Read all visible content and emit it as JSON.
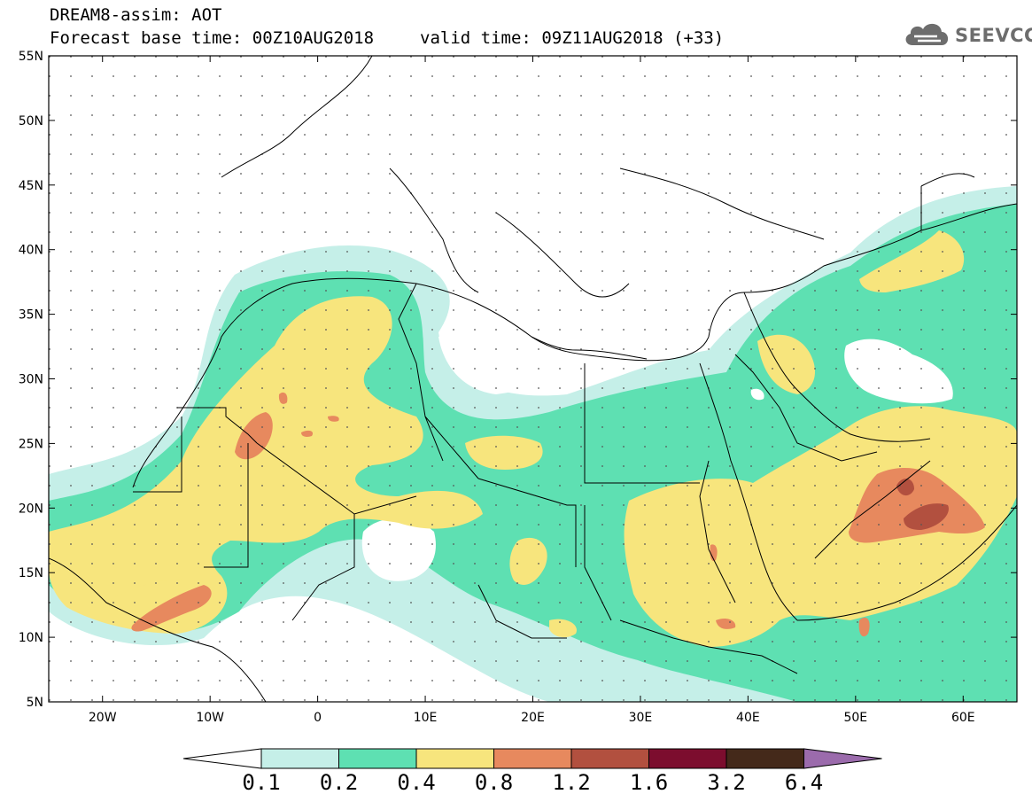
{
  "header": {
    "title": "DREAM8-assim: AOT",
    "base_time": "Forecast base time: 00Z10AUG2018",
    "valid_time": "valid time: 09Z11AUG2018 (+33)"
  },
  "logo": {
    "text": "SEEVCCC",
    "icon": "cloud-icon",
    "color": "#6d6d6d"
  },
  "map": {
    "lon_range": [
      -25,
      65
    ],
    "lat_range": [
      5,
      55
    ],
    "lat_labels": [
      "55N",
      "50N",
      "45N",
      "40N",
      "35N",
      "30N",
      "25N",
      "20N",
      "15N",
      "10N",
      "5N"
    ],
    "lon_labels": [
      "20W",
      "10W",
      "0",
      "10E",
      "20E",
      "30E",
      "40E",
      "50E",
      "60E"
    ]
  },
  "colorbar": {
    "levels": [
      "0.1",
      "0.2",
      "0.4",
      "0.8",
      "1.2",
      "1.6",
      "3.2",
      "6.4"
    ],
    "colors": [
      "#ffffff",
      "#c5efe8",
      "#5ee0b2",
      "#f7e57d",
      "#e7895e",
      "#b2503f",
      "#7c0d2e",
      "#44291a",
      "#9b6bac"
    ]
  }
}
